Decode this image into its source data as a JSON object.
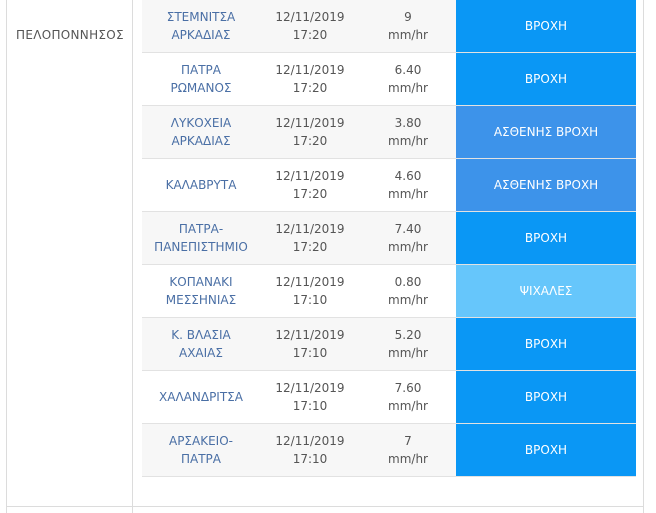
{
  "region": "ΠΕΛΟΠΟΝΝΗΣΟΣ",
  "colors": {
    "rain": "#0a97f5",
    "weak_rain": "#3d93ea",
    "drizzle": "#66c6fb"
  },
  "rows": [
    {
      "station": "ΣΤΕΜΝΙΤΣΑ\nΑΡΚΑΔΙΑΣ",
      "datetime": "12/11/2019\n17:20",
      "rate": "9\nmm/hr",
      "status": "ΒΡΟΧΗ",
      "kind": "rain"
    },
    {
      "station": "ΠΑΤΡΑ\nΡΩΜΑΝΟΣ",
      "datetime": "12/11/2019\n17:20",
      "rate": "6.40\nmm/hr",
      "status": "ΒΡΟΧΗ",
      "kind": "rain"
    },
    {
      "station": "ΛΥΚΟΧΕΙΑ\nΑΡΚΑΔΙΑΣ",
      "datetime": "12/11/2019\n17:20",
      "rate": "3.80\nmm/hr",
      "status": "ΑΣΘΕΝΗΣ ΒΡΟΧΗ",
      "kind": "weak"
    },
    {
      "station": "ΚΑΛΑΒΡΥΤΑ",
      "datetime": "12/11/2019\n17:20",
      "rate": "4.60\nmm/hr",
      "status": "ΑΣΘΕΝΗΣ ΒΡΟΧΗ",
      "kind": "weak"
    },
    {
      "station": "ΠΑΤΡΑ-\nΠΑΝΕΠΙΣΤΗΜΙΟ",
      "datetime": "12/11/2019\n17:20",
      "rate": "7.40\nmm/hr",
      "status": "ΒΡΟΧΗ",
      "kind": "rain"
    },
    {
      "station": "ΚΟΠΑΝΑΚΙ\nΜΕΣΣΗΝΙΑΣ",
      "datetime": "12/11/2019\n17:10",
      "rate": "0.80\nmm/hr",
      "status": "ΨΙΧΑΛΕΣ",
      "kind": "drizzle"
    },
    {
      "station": "Κ. ΒΛΑΣΙΑ\nΑΧΑΙΑΣ",
      "datetime": "12/11/2019\n17:10",
      "rate": "5.20\nmm/hr",
      "status": "ΒΡΟΧΗ",
      "kind": "rain"
    },
    {
      "station": "ΧΑΛΑΝΔΡΙΤΣΑ",
      "datetime": "12/11/2019\n17:10",
      "rate": "7.60\nmm/hr",
      "status": "ΒΡΟΧΗ",
      "kind": "rain"
    },
    {
      "station": "ΑΡΣΑΚΕΙΟ-\nΠΑΤΡΑ",
      "datetime": "12/11/2019\n17:10",
      "rate": "7\nmm/hr",
      "status": "ΒΡΟΧΗ",
      "kind": "rain"
    }
  ]
}
